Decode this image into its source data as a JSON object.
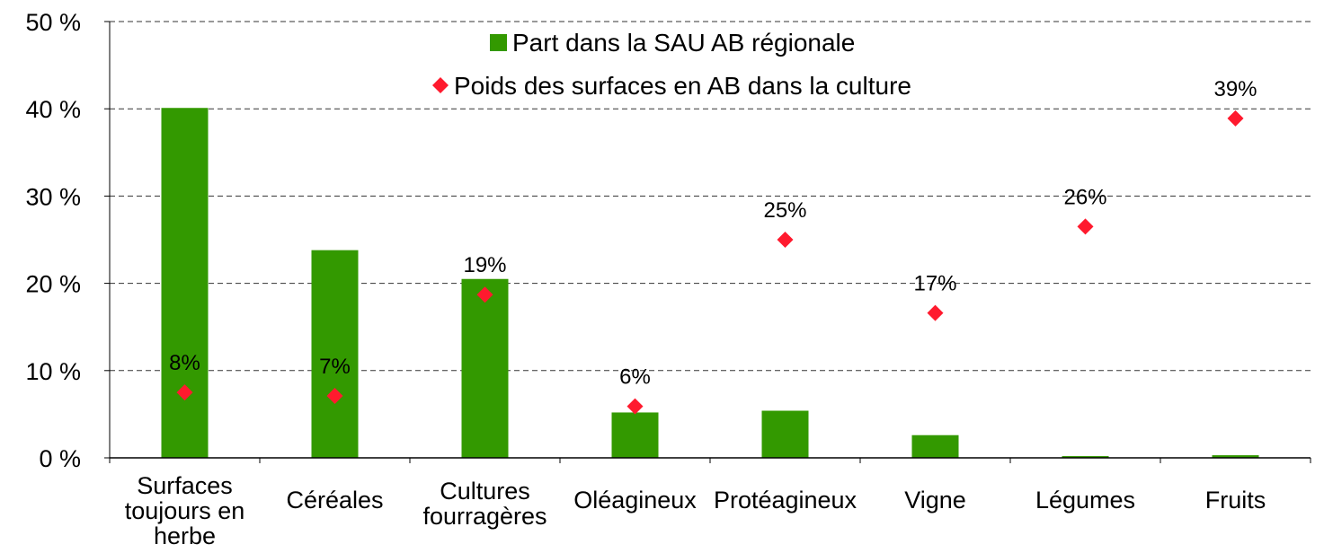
{
  "chart_data": {
    "type": "bar",
    "categories": [
      [
        "Surfaces",
        "toujours en",
        "herbe"
      ],
      [
        "Céréales"
      ],
      [
        "Cultures",
        "fourragères"
      ],
      [
        "Oléagineux"
      ],
      [
        "Protéagineux"
      ],
      [
        "Vigne"
      ],
      [
        "Légumes"
      ],
      [
        "Fruits"
      ]
    ],
    "series": [
      {
        "name": "Part dans la SAU AB régionale",
        "kind": "bar",
        "color": "#339900",
        "values": [
          40.1,
          23.8,
          20.5,
          5.2,
          5.4,
          2.6,
          0.2,
          0.3
        ]
      },
      {
        "name": "Poids des surfaces en AB dans la culture",
        "kind": "marker",
        "marker": "diamond",
        "color": "#ff1a2e",
        "values": [
          7.5,
          7.1,
          18.7,
          5.9,
          25.0,
          16.6,
          26.5,
          38.9
        ],
        "labels": [
          "8%",
          "7%",
          "19%",
          "6%",
          "25%",
          "17%",
          "26%",
          "39%"
        ]
      }
    ],
    "yticks": [
      "0 %",
      "10 %",
      "20 %",
      "30 %",
      "40 %",
      "50 %"
    ],
    "ylim": [
      0,
      50
    ],
    "grid": "horizontal dashed",
    "legend": "top-center"
  }
}
